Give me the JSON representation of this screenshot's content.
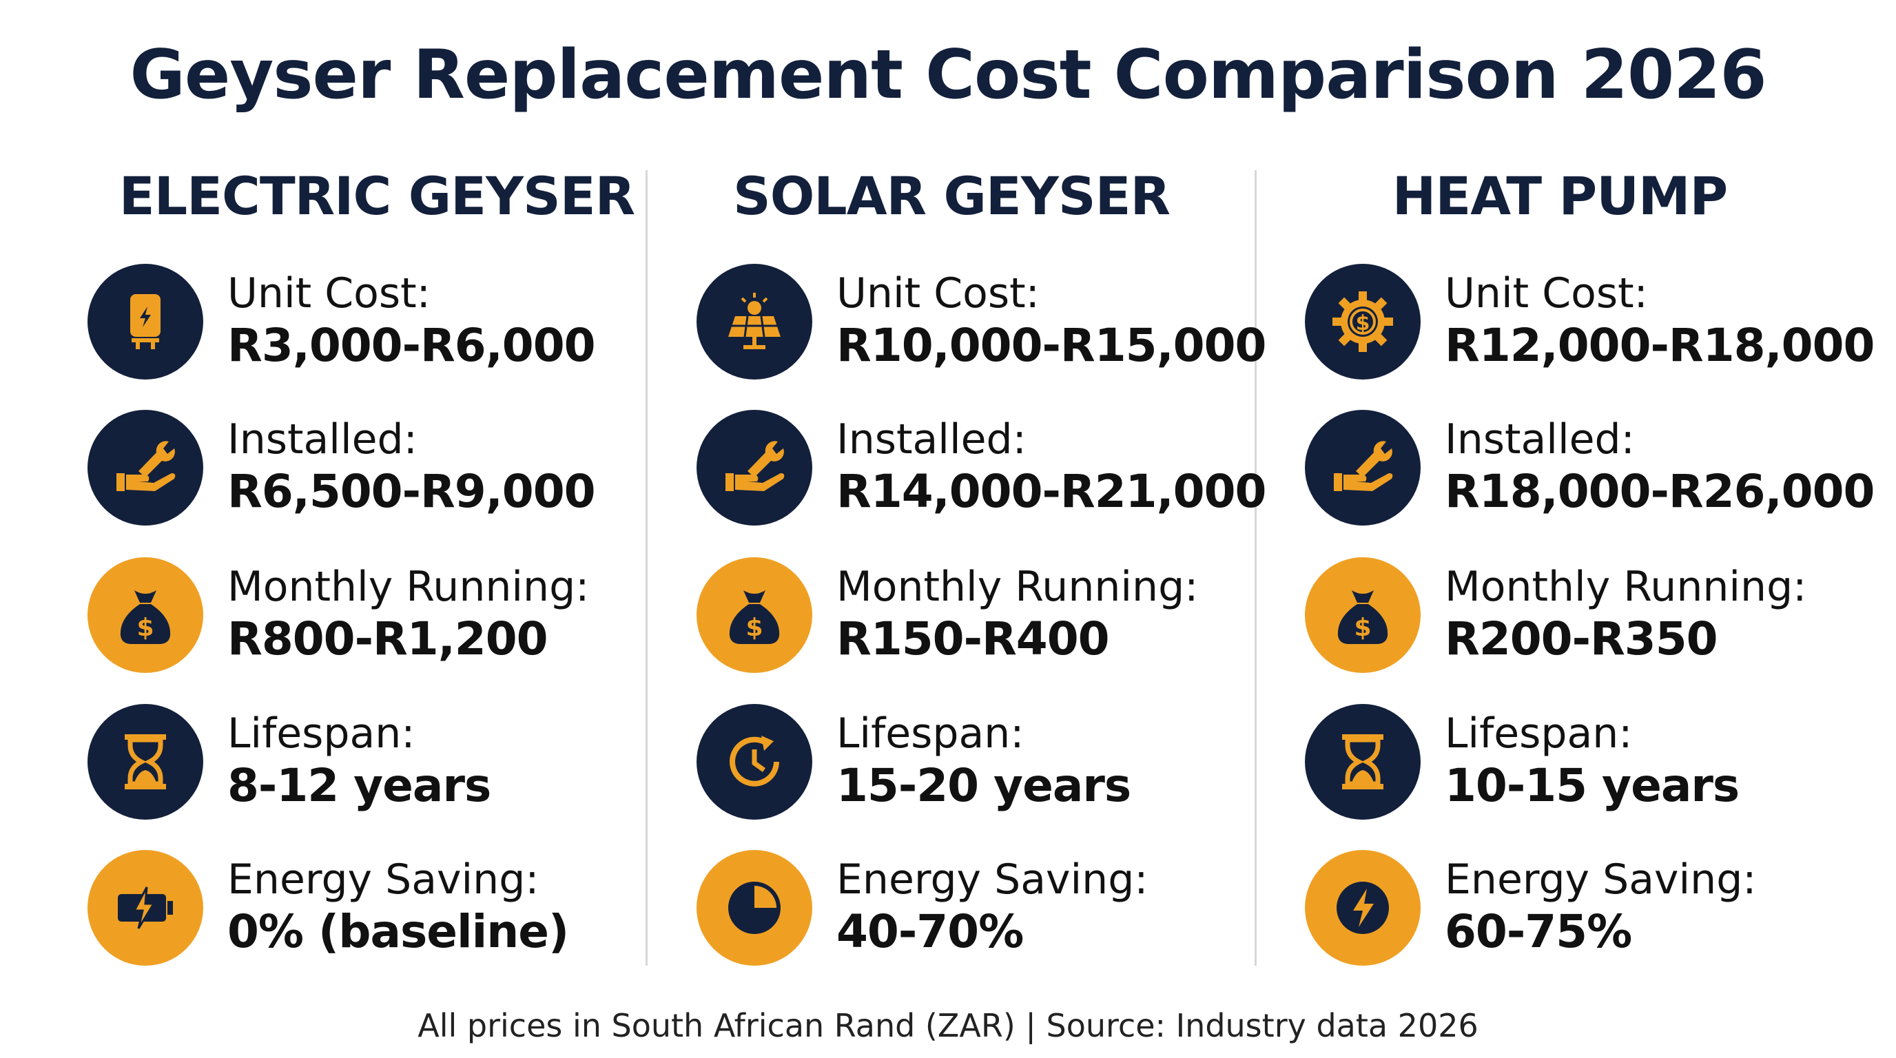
{
  "title": "Geyser Replacement Cost Comparison 2026",
  "colors": {
    "navy": "#13203b",
    "orange": "#efa023"
  },
  "columns": [
    {
      "heading": "ELECTRIC GEYSER",
      "rows": [
        {
          "label": "Unit Cost:",
          "value": "R3,000-R6,000",
          "icon": "geyser-icon",
          "bg": "navy"
        },
        {
          "label": "Installed:",
          "value": "R6,500-R9,000",
          "icon": "wrench-hand-icon",
          "bg": "navy"
        },
        {
          "label": "Monthly Running:",
          "value": "R800-R1,200",
          "icon": "money-bag-icon",
          "bg": "orange"
        },
        {
          "label": "Lifespan:",
          "value": "8-12 years",
          "icon": "hourglass-icon",
          "bg": "navy"
        },
        {
          "label": "Energy Saving:",
          "value": "0% (baseline)",
          "icon": "battery-bolt-icon",
          "bg": "orange"
        }
      ]
    },
    {
      "heading": "SOLAR GEYSER",
      "rows": [
        {
          "label": "Unit Cost:",
          "value": "R10,000-R15,000",
          "icon": "solar-panel-icon",
          "bg": "navy"
        },
        {
          "label": "Installed:",
          "value": "R14,000-R21,000",
          "icon": "wrench-hand-icon",
          "bg": "navy"
        },
        {
          "label": "Monthly Running:",
          "value": "R150-R400",
          "icon": "money-bag-icon",
          "bg": "orange"
        },
        {
          "label": "Lifespan:",
          "value": "15-20 years",
          "icon": "clock-refresh-icon",
          "bg": "navy"
        },
        {
          "label": "Energy Saving:",
          "value": "40-70%",
          "icon": "pie-chart-icon",
          "bg": "orange"
        }
      ]
    },
    {
      "heading": "HEAT PUMP",
      "rows": [
        {
          "label": "Unit Cost:",
          "value": "R12,000-R18,000",
          "icon": "gear-dollar-icon",
          "bg": "navy"
        },
        {
          "label": "Installed:",
          "value": "R18,000-R26,000",
          "icon": "wrench-hand-icon",
          "bg": "navy"
        },
        {
          "label": "Monthly Running:",
          "value": "R200-R350",
          "icon": "money-bag-icon",
          "bg": "orange"
        },
        {
          "label": "Lifespan:",
          "value": "10-15 years",
          "icon": "hourglass-icon",
          "bg": "navy"
        },
        {
          "label": "Energy Saving:",
          "value": "60-75%",
          "icon": "lightning-circle-icon",
          "bg": "orange"
        }
      ]
    }
  ],
  "footer": "All prices in South African Rand (ZAR) | Source: Industry data 2026"
}
